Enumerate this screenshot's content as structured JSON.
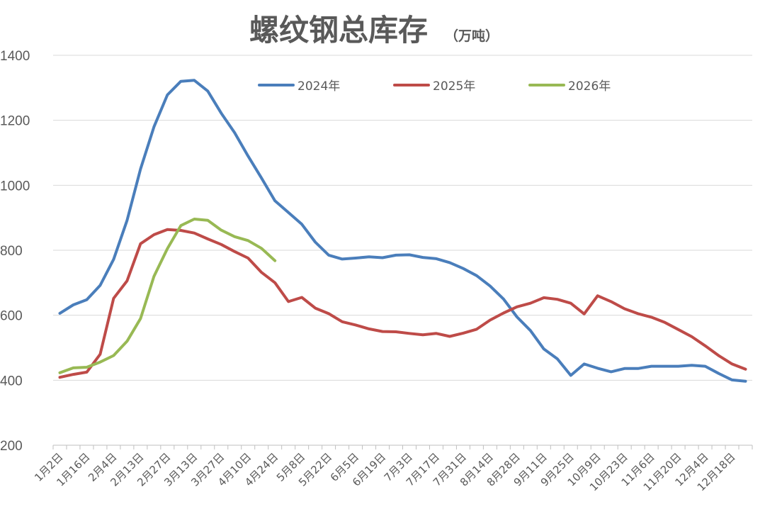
{
  "chart_data": {
    "type": "line",
    "title": "螺纹钢总库存",
    "title_unit": "（万吨）",
    "xlabel": "",
    "ylabel": "",
    "ylim": [
      200,
      1400
    ],
    "yticks": [
      200,
      400,
      600,
      800,
      1000,
      1200,
      1400
    ],
    "grid": true,
    "legend_position": "top",
    "tick_labels": [
      "1月2日",
      "1月16日",
      "2月4日",
      "2月13日",
      "2月27日",
      "3月13日",
      "3月27日",
      "4月10日",
      "4月24日",
      "5月8日",
      "5月22日",
      "6月5日",
      "6月19日",
      "7月3日",
      "7月17日",
      "7月31日",
      "8月14日",
      "8月28日",
      "9月11日",
      "9月25日",
      "10月9日",
      "10月23日",
      "11月6日",
      "11月20日",
      "12月4日",
      "12月18日"
    ],
    "series": [
      {
        "name": "2024年",
        "color": "#4a7ebb",
        "values": [
          606,
          632,
          648,
          692,
          772,
          892,
          1050,
          1180,
          1278,
          1320,
          1323,
          1290,
          1222,
          1162,
          1090,
          1022,
          952,
          916,
          880,
          825,
          785,
          773,
          776,
          780,
          777,
          785,
          786,
          778,
          774,
          762,
          744,
          722,
          690,
          650,
          595,
          553,
          496,
          466,
          415,
          450,
          437,
          426,
          436,
          436,
          443,
          443,
          443,
          446,
          443,
          421,
          401,
          397
        ]
      },
      {
        "name": "2025年",
        "color": "#be4b48",
        "values": [
          409,
          418,
          425,
          480,
          652,
          706,
          820,
          848,
          864,
          861,
          853,
          835,
          818,
          796,
          776,
          732,
          700,
          642,
          655,
          622,
          605,
          580,
          570,
          558,
          550,
          549,
          544,
          540,
          544,
          535,
          545,
          557,
          585,
          607,
          626,
          637,
          654,
          649,
          637,
          604,
          660,
          642,
          620,
          605,
          594,
          578,
          556,
          534,
          506,
          476,
          450,
          434
        ]
      },
      {
        "name": "2026年",
        "color": "#98b954",
        "values": [
          423,
          438,
          440,
          456,
          476,
          520,
          590,
          720,
          805,
          876,
          896,
          892,
          862,
          842,
          830,
          806,
          768
        ]
      }
    ]
  }
}
